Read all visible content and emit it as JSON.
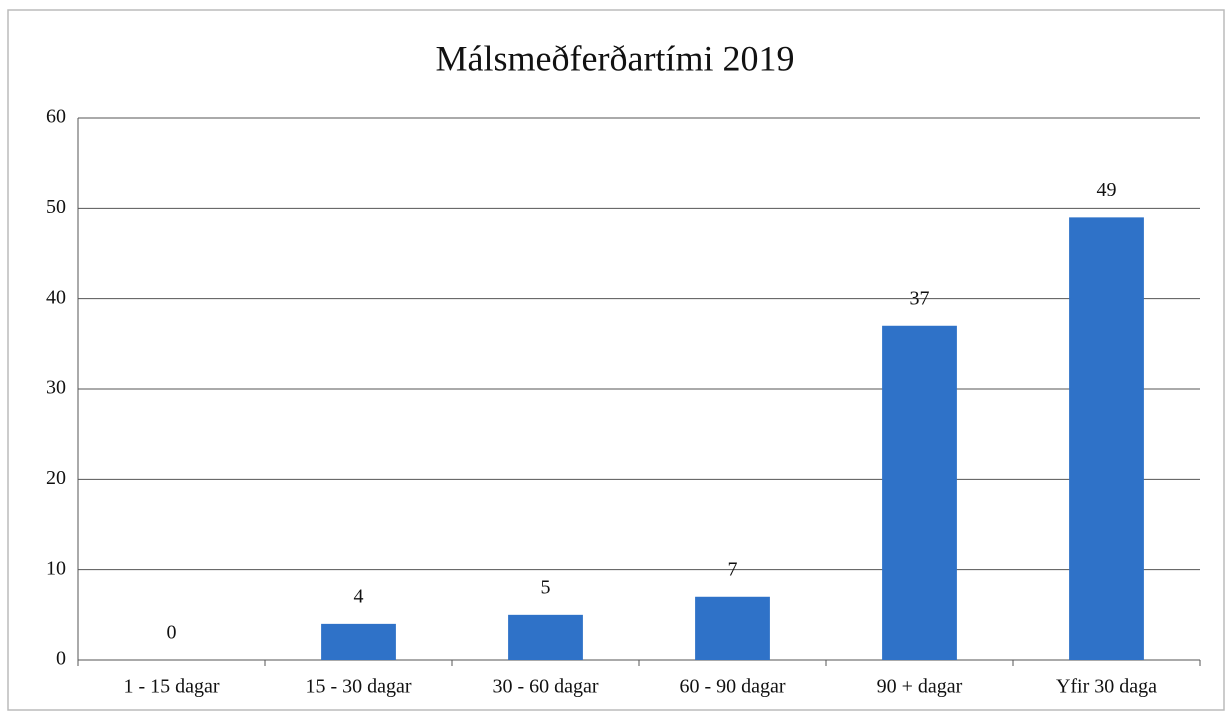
{
  "chart_data": {
    "type": "bar",
    "title": "Málsmeðferðartími 2019",
    "categories": [
      "1 - 15 dagar",
      "15 - 30 dagar",
      "30 - 60 dagar",
      "60 - 90 dagar",
      "90 + dagar",
      "Yfir 30 daga"
    ],
    "values": [
      0,
      4,
      5,
      7,
      37,
      49
    ],
    "color": "#2f72c8",
    "ylim": [
      0,
      60
    ],
    "yticks": [
      0,
      10,
      20,
      30,
      40,
      50,
      60
    ],
    "grid": true
  }
}
